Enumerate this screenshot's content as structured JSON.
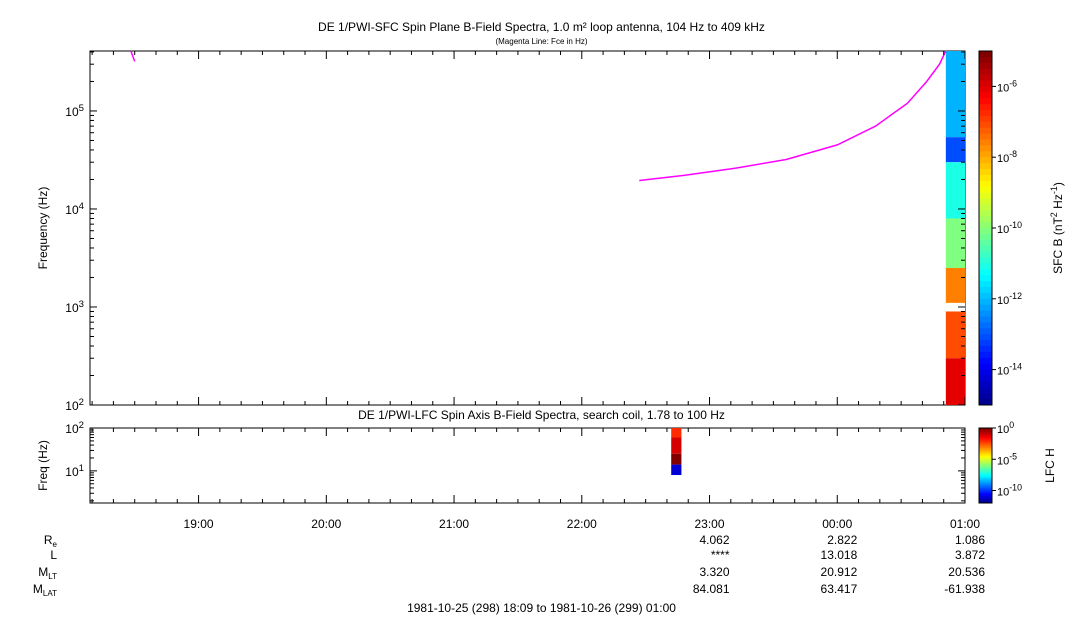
{
  "chart_data": [
    {
      "type": "heatmap",
      "title": "DE 1/PWI-SFC  Spin Plane B-Field Spectra, 1.0 m² loop antenna, 104 Hz to 409 kHz",
      "subtitle": "(Magenta Line: Fce in Hz)",
      "ylabel": "Frequency (Hz)",
      "yscale": "log",
      "ylim": [
        100,
        409000
      ],
      "y_ticks": [
        {
          "value": 100,
          "label_base": "10",
          "label_exp": "2"
        },
        {
          "value": 1000,
          "label_base": "10",
          "label_exp": "3"
        },
        {
          "value": 10000,
          "label_base": "10",
          "label_exp": "4"
        },
        {
          "value": 100000,
          "label_base": "10",
          "label_exp": "5"
        }
      ],
      "xlim_hours": [
        18.15,
        25.0
      ],
      "colorbar": {
        "label_parts": {
          "pre": "SFC B (nT",
          "exp1": "2",
          "mid": " Hz",
          "exp2": "-1",
          "post": ")"
        },
        "scale": "log",
        "range_exp": [
          -15,
          -5
        ],
        "ticks": [
          {
            "exp": -6,
            "label_base": "10",
            "label_exp": "-6"
          },
          {
            "exp": -8,
            "label_base": "10",
            "label_exp": "-8"
          },
          {
            "exp": -10,
            "label_base": "10",
            "label_exp": "-10"
          },
          {
            "exp": -12,
            "label_base": "10",
            "label_exp": "-12"
          },
          {
            "exp": -14,
            "label_base": "10",
            "label_exp": "-14"
          }
        ]
      },
      "fce_line": {
        "color": "#ff00ff",
        "segment1": [
          [
            18.47,
            409000
          ],
          [
            18.5,
            320000
          ]
        ],
        "segment2": [
          [
            22.45,
            19500
          ],
          [
            22.8,
            22000
          ],
          [
            23.2,
            26000
          ],
          [
            23.6,
            32000
          ],
          [
            24.0,
            45000
          ],
          [
            24.3,
            70000
          ],
          [
            24.55,
            120000
          ],
          [
            24.7,
            200000
          ],
          [
            24.8,
            300000
          ],
          [
            24.85,
            409000
          ]
        ]
      },
      "spectrogram_columns": [
        {
          "x_start": 24.85,
          "x_end": 25.0,
          "bands": [
            {
              "f_lo": 54000,
              "f_hi": 409000,
              "level_exp": -12
            },
            {
              "f_lo": 30000,
              "f_hi": 54000,
              "level_exp": -13
            },
            {
              "f_lo": 8000,
              "f_hi": 30000,
              "level_exp": -11
            },
            {
              "f_lo": 2500,
              "f_hi": 8000,
              "level_exp": -10
            },
            {
              "f_lo": 1100,
              "f_hi": 2500,
              "level_exp": -7.5
            },
            {
              "f_lo": 900,
              "f_hi": 1100,
              "level_exp": null
            },
            {
              "f_lo": 300,
              "f_hi": 900,
              "level_exp": -7
            },
            {
              "f_lo": 100,
              "f_hi": 300,
              "level_exp": -6
            }
          ]
        }
      ]
    },
    {
      "type": "heatmap",
      "title": "DE 1/PWI-LFC  Spin Axis B-Field Spectra, search coil, 1.78 to 100 Hz",
      "ylabel": "Freq (Hz)",
      "yscale": "log",
      "ylim": [
        1.78,
        100
      ],
      "y_ticks": [
        {
          "value": 10,
          "label_base": "10",
          "label_exp": "1"
        },
        {
          "value": 100,
          "label_base": "10",
          "label_exp": "2"
        }
      ],
      "colorbar": {
        "label": "LFC H",
        "scale": "log",
        "range_exp": [
          -12,
          0
        ],
        "ticks": [
          {
            "exp": 0,
            "label_base": "10",
            "label_exp": "0"
          },
          {
            "exp": -5,
            "label_base": "10",
            "label_exp": "-5"
          },
          {
            "exp": -10,
            "label_base": "10",
            "label_exp": "-10"
          }
        ]
      },
      "spectrogram_columns": [
        {
          "x_start": 22.7,
          "x_end": 22.78,
          "bands": [
            {
              "f_lo": 60,
              "f_hi": 100,
              "level_exp": -2
            },
            {
              "f_lo": 25,
              "f_hi": 60,
              "level_exp": -1
            },
            {
              "f_lo": 14,
              "f_hi": 25,
              "level_exp": 0
            },
            {
              "f_lo": 8,
              "f_hi": 14,
              "level_exp": -11
            }
          ]
        }
      ]
    }
  ],
  "x_axis": {
    "ticks": [
      {
        "hour": 19,
        "label": "19:00"
      },
      {
        "hour": 20,
        "label": "20:00"
      },
      {
        "hour": 21,
        "label": "21:00"
      },
      {
        "hour": 22,
        "label": "22:00"
      },
      {
        "hour": 23,
        "label": "23:00"
      },
      {
        "hour": 24,
        "label": "00:00"
      },
      {
        "hour": 25,
        "label": "01:00"
      }
    ]
  },
  "ephemeris": {
    "rows": [
      {
        "name": "R",
        "sub": "e",
        "values": [
          "4.062",
          "2.822",
          "1.086"
        ]
      },
      {
        "name": "L",
        "sub": "",
        "values": [
          "****",
          "13.018",
          "3.872"
        ]
      },
      {
        "name": "M",
        "sub": "LT",
        "values": [
          "3.320",
          "20.912",
          "20.536"
        ]
      },
      {
        "name": "M",
        "sub": "LAT",
        "values": [
          "84.081",
          "63.417",
          "-61.938"
        ]
      }
    ],
    "value_hours": [
      23,
      24,
      25
    ]
  },
  "time_range": "1981-10-25 (298) 18:09 to 1981-10-26 (299) 01:00"
}
